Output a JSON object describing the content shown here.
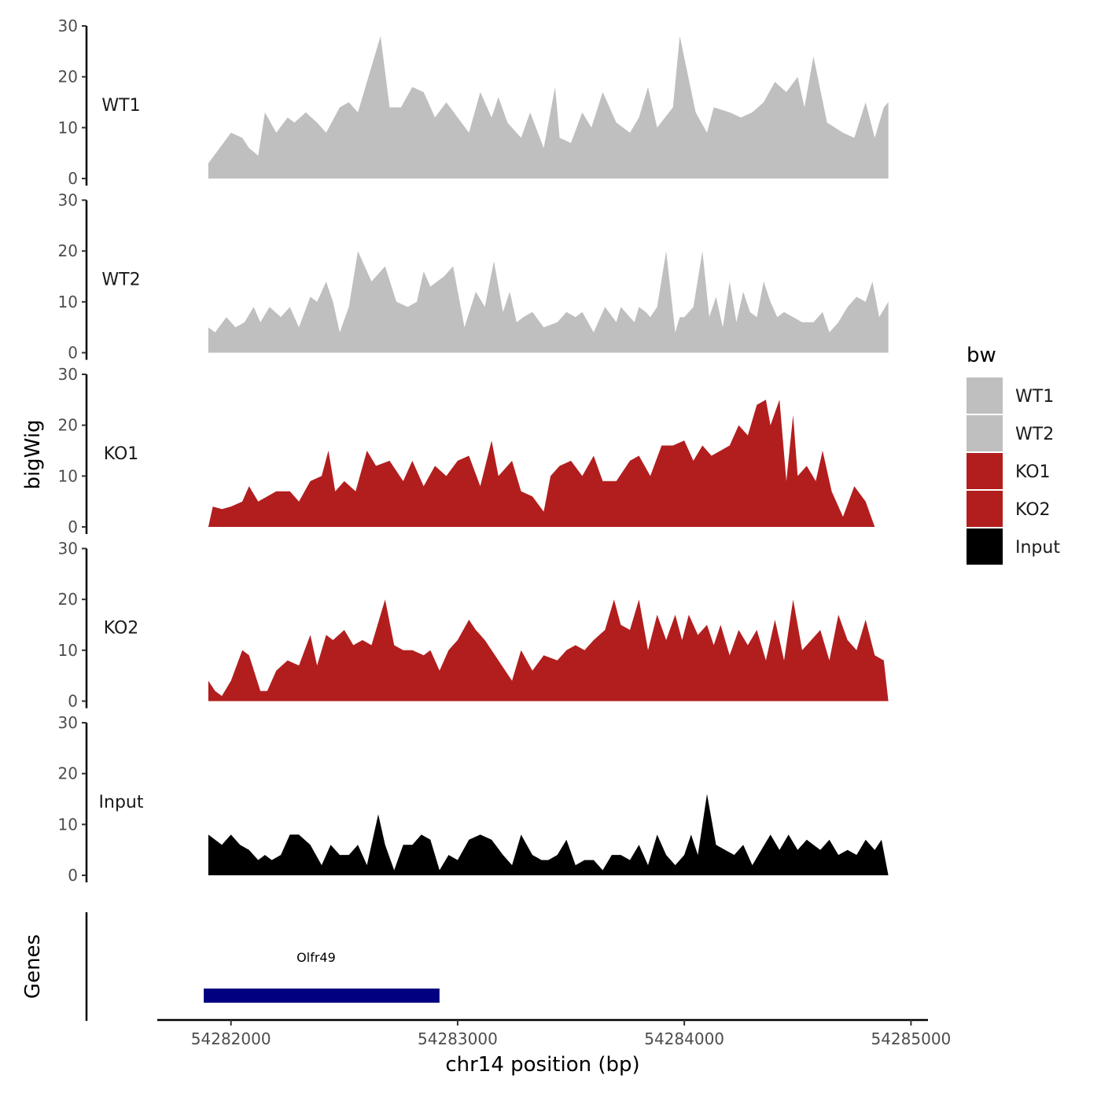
{
  "chart_data": {
    "type": "area",
    "chromosome": "chr14",
    "xlabel": "chr14 position (bp)",
    "ylabel": "bigWig",
    "genes_label": "Genes",
    "xlim": [
      54281675,
      54285075
    ],
    "data_range": [
      54281900,
      54284900
    ],
    "ylim": [
      0,
      30
    ],
    "yticks": [
      0,
      10,
      20,
      30
    ],
    "xticks": [
      54282000,
      54283000,
      54284000,
      54285000
    ],
    "xtick_labels": [
      "54282000",
      "54283000",
      "54284000",
      "54285000"
    ],
    "legend": {
      "title": "bw",
      "entries": [
        {
          "label": "WT1",
          "color": "#bfbfbf"
        },
        {
          "label": "WT2",
          "color": "#bfbfbf"
        },
        {
          "label": "KO1",
          "color": "#b21e1e"
        },
        {
          "label": "KO2",
          "color": "#b21e1e"
        },
        {
          "label": "Input",
          "color": "#000000"
        }
      ]
    },
    "series": [
      {
        "name": "WT1",
        "color": "#bfbfbf",
        "x": [
          54281900,
          54281950,
          54282000,
          54282050,
          54282080,
          54282120,
          54282150,
          54282200,
          54282250,
          54282280,
          54282330,
          54282380,
          54282420,
          54282480,
          54282520,
          54282560,
          54282600,
          54282660,
          54282700,
          54282750,
          54282800,
          54282850,
          54282900,
          54282950,
          54283000,
          54283050,
          54283100,
          54283150,
          54283180,
          54283220,
          54283280,
          54283320,
          54283380,
          54283430,
          54283450,
          54283500,
          54283550,
          54283590,
          54283640,
          54283700,
          54283760,
          54283800,
          54283840,
          54283880,
          54283950,
          54283980,
          54284050,
          54284100,
          54284130,
          54284200,
          54284250,
          54284300,
          54284350,
          54284400,
          54284450,
          54284500,
          54284530,
          54284570,
          54284630,
          54284700,
          54284750,
          54284800,
          54284840,
          54284880,
          54284900
        ],
        "values": [
          3,
          6,
          9,
          8,
          6,
          4.5,
          13,
          9,
          12,
          11,
          13,
          11,
          9,
          14,
          15,
          13,
          19,
          28,
          14,
          14,
          18,
          17,
          12,
          15,
          12,
          9,
          17,
          12,
          16,
          11,
          8,
          13,
          6,
          18,
          8,
          7,
          13,
          10,
          17,
          11,
          9,
          12,
          18,
          10,
          14,
          28,
          13,
          9,
          14,
          13,
          12,
          13,
          15,
          19,
          17,
          20,
          14,
          24,
          11,
          9,
          8,
          15,
          8,
          14,
          15
        ]
      },
      {
        "name": "WT2",
        "color": "#bfbfbf",
        "x": [
          54281900,
          54281930,
          54281980,
          54282020,
          54282060,
          54282100,
          54282130,
          54282170,
          54282220,
          54282260,
          54282300,
          54282350,
          54282380,
          54282420,
          54282450,
          54282480,
          54282520,
          54282560,
          54282620,
          54282680,
          54282730,
          54282780,
          54282820,
          54282850,
          54282880,
          54282940,
          54282980,
          54283030,
          54283080,
          54283120,
          54283160,
          54283200,
          54283230,
          54283260,
          54283290,
          54283330,
          54283380,
          54283440,
          54283480,
          54283520,
          54283550,
          54283600,
          54283650,
          54283700,
          54283720,
          54283780,
          54283800,
          54283830,
          54283850,
          54283880,
          54283920,
          54283960,
          54283980,
          54284000,
          54284040,
          54284080,
          54284110,
          54284140,
          54284170,
          54284200,
          54284230,
          54284260,
          54284290,
          54284320,
          54284350,
          54284380,
          54284410,
          54284440,
          54284480,
          54284520,
          54284570,
          54284610,
          54284640,
          54284680,
          54284720,
          54284760,
          54284800,
          54284830,
          54284860,
          54284900
        ],
        "values": [
          5,
          4,
          7,
          5,
          6,
          9,
          6,
          9,
          7,
          9,
          5,
          11,
          10,
          14,
          10,
          4,
          9,
          20,
          14,
          17,
          10,
          9,
          10,
          16,
          13,
          15,
          17,
          5,
          12,
          9,
          18,
          8,
          12,
          6,
          7,
          8,
          5,
          6,
          8,
          7,
          8,
          4,
          9,
          6,
          9,
          6,
          9,
          8,
          7,
          9,
          20,
          4,
          7,
          7,
          9,
          20,
          7,
          11,
          5,
          14,
          6,
          12,
          8,
          7,
          14,
          10,
          7,
          8,
          7,
          6,
          6,
          8,
          4,
          6,
          9,
          11,
          10,
          14,
          7,
          10
        ]
      },
      {
        "name": "KO1",
        "color": "#b21e1e",
        "x": [
          54281900,
          54281920,
          54281960,
          54282000,
          54282050,
          54282080,
          54282120,
          54282160,
          54282200,
          54282260,
          54282300,
          54282350,
          54282400,
          54282430,
          54282460,
          54282500,
          54282550,
          54282600,
          54282640,
          54282700,
          54282760,
          54282800,
          54282850,
          54282900,
          54282950,
          54283000,
          54283050,
          54283100,
          54283150,
          54283180,
          54283240,
          54283280,
          54283330,
          54283380,
          54283410,
          54283450,
          54283500,
          54283550,
          54283600,
          54283640,
          54283700,
          54283760,
          54283800,
          54283850,
          54283900,
          54283950,
          54284000,
          54284040,
          54284080,
          54284120,
          54284160,
          54284200,
          54284240,
          54284280,
          54284320,
          54284360,
          54284380,
          54284420,
          54284450,
          54284480,
          54284500,
          54284540,
          54284580,
          54284610,
          54284650,
          54284700,
          54284750,
          54284800,
          54284840,
          54284870,
          54284900
        ],
        "values": [
          0,
          4,
          3.5,
          4,
          5,
          8,
          5,
          6,
          7,
          7,
          5,
          9,
          10,
          15,
          7,
          9,
          7,
          15,
          12,
          13,
          9,
          13,
          8,
          12,
          10,
          13,
          14,
          8,
          17,
          10,
          13,
          7,
          6,
          3,
          10,
          12,
          13,
          10,
          14,
          9,
          9,
          13,
          14,
          10,
          16,
          16,
          17,
          13,
          16,
          14,
          15,
          16,
          20,
          18,
          24,
          25,
          20,
          25,
          9,
          22,
          10,
          12,
          9,
          15,
          7,
          2,
          8,
          5,
          0,
          0,
          0
        ]
      },
      {
        "name": "KO2",
        "color": "#b21e1e",
        "x": [
          54281900,
          54281930,
          54281960,
          54282000,
          54282050,
          54282080,
          54282130,
          54282160,
          54282200,
          54282250,
          54282300,
          54282350,
          54282380,
          54282420,
          54282450,
          54282500,
          54282540,
          54282580,
          54282620,
          54282680,
          54282720,
          54282760,
          54282800,
          54282850,
          54282880,
          54282920,
          54282960,
          54283000,
          54283050,
          54283080,
          54283120,
          54283180,
          54283240,
          54283280,
          54283330,
          54283380,
          54283440,
          54283480,
          54283520,
          54283560,
          54283600,
          54283650,
          54283690,
          54283720,
          54283760,
          54283800,
          54283840,
          54283880,
          54283920,
          54283960,
          54283990,
          54284020,
          54284060,
          54284100,
          54284130,
          54284160,
          54284200,
          54284240,
          54284280,
          54284320,
          54284360,
          54284400,
          54284440,
          54284480,
          54284520,
          54284560,
          54284600,
          54284640,
          54284680,
          54284720,
          54284760,
          54284800,
          54284840,
          54284880,
          54284900
        ],
        "values": [
          4,
          2,
          1,
          4,
          10,
          9,
          2,
          2,
          6,
          8,
          7,
          13,
          7,
          13,
          12,
          14,
          11,
          12,
          11,
          20,
          11,
          10,
          10,
          9,
          10,
          6,
          10,
          12,
          16,
          14,
          12,
          8,
          4,
          10,
          6,
          9,
          8,
          10,
          11,
          10,
          12,
          14,
          20,
          15,
          14,
          20,
          10,
          17,
          12,
          17,
          12,
          17,
          13,
          15,
          11,
          15,
          9,
          14,
          11,
          14,
          8,
          16,
          8,
          20,
          10,
          12,
          14,
          8,
          17,
          12,
          10,
          16,
          9,
          8,
          0
        ]
      },
      {
        "name": "Input",
        "color": "#000000",
        "x": [
          54281900,
          54281930,
          54281960,
          54282000,
          54282040,
          54282080,
          54282120,
          54282150,
          54282180,
          54282220,
          54282260,
          54282300,
          54282350,
          54282400,
          54282440,
          54282480,
          54282520,
          54282560,
          54282600,
          54282650,
          54282680,
          54282720,
          54282760,
          54282800,
          54282840,
          54282880,
          54282920,
          54282960,
          54283000,
          54283050,
          54283100,
          54283150,
          54283200,
          54283240,
          54283280,
          54283330,
          54283370,
          54283400,
          54283440,
          54283480,
          54283520,
          54283560,
          54283600,
          54283640,
          54283680,
          54283720,
          54283760,
          54283800,
          54283840,
          54283880,
          54283920,
          54283960,
          54284000,
          54284030,
          54284060,
          54284100,
          54284140,
          54284180,
          54284220,
          54284260,
          54284300,
          54284340,
          54284380,
          54284420,
          54284460,
          54284500,
          54284540,
          54284570,
          54284600,
          54284640,
          54284680,
          54284720,
          54284760,
          54284800,
          54284840,
          54284870,
          54284900
        ],
        "values": [
          8,
          7,
          6,
          8,
          6,
          5,
          3,
          4,
          3,
          4,
          8,
          8,
          6,
          2,
          6,
          4,
          4,
          6,
          2,
          12,
          6,
          1,
          6,
          6,
          8,
          7,
          1,
          4,
          3,
          7,
          8,
          7,
          4,
          2,
          8,
          4,
          3,
          3,
          4,
          7,
          2,
          3,
          3,
          1,
          4,
          4,
          3,
          6,
          2,
          8,
          4,
          2,
          4,
          8,
          4,
          16,
          6,
          5,
          4,
          6,
          2,
          5,
          8,
          5,
          8,
          5,
          7,
          6,
          5,
          7,
          4,
          5,
          4,
          7,
          5,
          7,
          0
        ]
      }
    ],
    "genes": [
      {
        "name": "Olfr49",
        "start": 54281880,
        "end": 54282920,
        "color": "#000080"
      }
    ]
  }
}
